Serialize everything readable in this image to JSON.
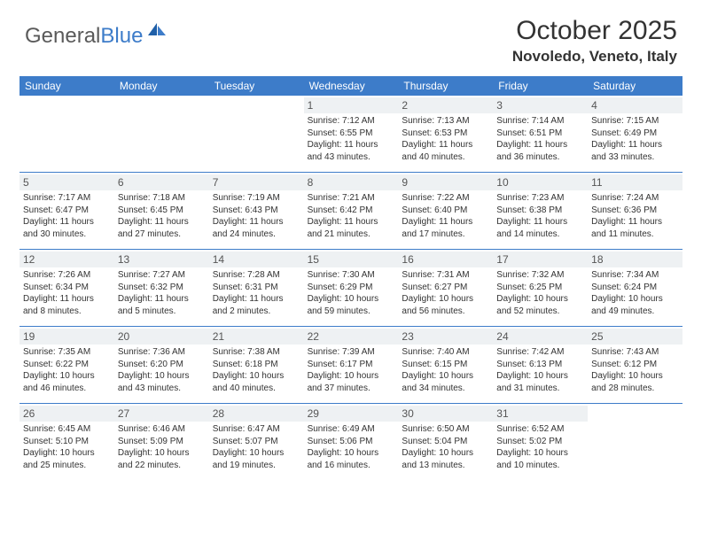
{
  "brand": {
    "part1": "General",
    "part2": "Blue"
  },
  "title": "October 2025",
  "location": "Novoledo, Veneto, Italy",
  "colors": {
    "accent": "#3d7cc9",
    "dayHeaderBg": "#eef1f3",
    "text": "#333333",
    "background": "#ffffff"
  },
  "typography": {
    "title_fontsize": 30,
    "location_fontsize": 17,
    "dow_fontsize": 12,
    "daynum_fontsize": 12,
    "detail_fontsize": 10
  },
  "dow": [
    "Sunday",
    "Monday",
    "Tuesday",
    "Wednesday",
    "Thursday",
    "Friday",
    "Saturday"
  ],
  "weeks": [
    [
      {
        "n": "",
        "sr": "",
        "ss": "",
        "dl": ""
      },
      {
        "n": "",
        "sr": "",
        "ss": "",
        "dl": ""
      },
      {
        "n": "",
        "sr": "",
        "ss": "",
        "dl": ""
      },
      {
        "n": "1",
        "sr": "Sunrise: 7:12 AM",
        "ss": "Sunset: 6:55 PM",
        "dl": "Daylight: 11 hours and 43 minutes."
      },
      {
        "n": "2",
        "sr": "Sunrise: 7:13 AM",
        "ss": "Sunset: 6:53 PM",
        "dl": "Daylight: 11 hours and 40 minutes."
      },
      {
        "n": "3",
        "sr": "Sunrise: 7:14 AM",
        "ss": "Sunset: 6:51 PM",
        "dl": "Daylight: 11 hours and 36 minutes."
      },
      {
        "n": "4",
        "sr": "Sunrise: 7:15 AM",
        "ss": "Sunset: 6:49 PM",
        "dl": "Daylight: 11 hours and 33 minutes."
      }
    ],
    [
      {
        "n": "5",
        "sr": "Sunrise: 7:17 AM",
        "ss": "Sunset: 6:47 PM",
        "dl": "Daylight: 11 hours and 30 minutes."
      },
      {
        "n": "6",
        "sr": "Sunrise: 7:18 AM",
        "ss": "Sunset: 6:45 PM",
        "dl": "Daylight: 11 hours and 27 minutes."
      },
      {
        "n": "7",
        "sr": "Sunrise: 7:19 AM",
        "ss": "Sunset: 6:43 PM",
        "dl": "Daylight: 11 hours and 24 minutes."
      },
      {
        "n": "8",
        "sr": "Sunrise: 7:21 AM",
        "ss": "Sunset: 6:42 PM",
        "dl": "Daylight: 11 hours and 21 minutes."
      },
      {
        "n": "9",
        "sr": "Sunrise: 7:22 AM",
        "ss": "Sunset: 6:40 PM",
        "dl": "Daylight: 11 hours and 17 minutes."
      },
      {
        "n": "10",
        "sr": "Sunrise: 7:23 AM",
        "ss": "Sunset: 6:38 PM",
        "dl": "Daylight: 11 hours and 14 minutes."
      },
      {
        "n": "11",
        "sr": "Sunrise: 7:24 AM",
        "ss": "Sunset: 6:36 PM",
        "dl": "Daylight: 11 hours and 11 minutes."
      }
    ],
    [
      {
        "n": "12",
        "sr": "Sunrise: 7:26 AM",
        "ss": "Sunset: 6:34 PM",
        "dl": "Daylight: 11 hours and 8 minutes."
      },
      {
        "n": "13",
        "sr": "Sunrise: 7:27 AM",
        "ss": "Sunset: 6:32 PM",
        "dl": "Daylight: 11 hours and 5 minutes."
      },
      {
        "n": "14",
        "sr": "Sunrise: 7:28 AM",
        "ss": "Sunset: 6:31 PM",
        "dl": "Daylight: 11 hours and 2 minutes."
      },
      {
        "n": "15",
        "sr": "Sunrise: 7:30 AM",
        "ss": "Sunset: 6:29 PM",
        "dl": "Daylight: 10 hours and 59 minutes."
      },
      {
        "n": "16",
        "sr": "Sunrise: 7:31 AM",
        "ss": "Sunset: 6:27 PM",
        "dl": "Daylight: 10 hours and 56 minutes."
      },
      {
        "n": "17",
        "sr": "Sunrise: 7:32 AM",
        "ss": "Sunset: 6:25 PM",
        "dl": "Daylight: 10 hours and 52 minutes."
      },
      {
        "n": "18",
        "sr": "Sunrise: 7:34 AM",
        "ss": "Sunset: 6:24 PM",
        "dl": "Daylight: 10 hours and 49 minutes."
      }
    ],
    [
      {
        "n": "19",
        "sr": "Sunrise: 7:35 AM",
        "ss": "Sunset: 6:22 PM",
        "dl": "Daylight: 10 hours and 46 minutes."
      },
      {
        "n": "20",
        "sr": "Sunrise: 7:36 AM",
        "ss": "Sunset: 6:20 PM",
        "dl": "Daylight: 10 hours and 43 minutes."
      },
      {
        "n": "21",
        "sr": "Sunrise: 7:38 AM",
        "ss": "Sunset: 6:18 PM",
        "dl": "Daylight: 10 hours and 40 minutes."
      },
      {
        "n": "22",
        "sr": "Sunrise: 7:39 AM",
        "ss": "Sunset: 6:17 PM",
        "dl": "Daylight: 10 hours and 37 minutes."
      },
      {
        "n": "23",
        "sr": "Sunrise: 7:40 AM",
        "ss": "Sunset: 6:15 PM",
        "dl": "Daylight: 10 hours and 34 minutes."
      },
      {
        "n": "24",
        "sr": "Sunrise: 7:42 AM",
        "ss": "Sunset: 6:13 PM",
        "dl": "Daylight: 10 hours and 31 minutes."
      },
      {
        "n": "25",
        "sr": "Sunrise: 7:43 AM",
        "ss": "Sunset: 6:12 PM",
        "dl": "Daylight: 10 hours and 28 minutes."
      }
    ],
    [
      {
        "n": "26",
        "sr": "Sunrise: 6:45 AM",
        "ss": "Sunset: 5:10 PM",
        "dl": "Daylight: 10 hours and 25 minutes."
      },
      {
        "n": "27",
        "sr": "Sunrise: 6:46 AM",
        "ss": "Sunset: 5:09 PM",
        "dl": "Daylight: 10 hours and 22 minutes."
      },
      {
        "n": "28",
        "sr": "Sunrise: 6:47 AM",
        "ss": "Sunset: 5:07 PM",
        "dl": "Daylight: 10 hours and 19 minutes."
      },
      {
        "n": "29",
        "sr": "Sunrise: 6:49 AM",
        "ss": "Sunset: 5:06 PM",
        "dl": "Daylight: 10 hours and 16 minutes."
      },
      {
        "n": "30",
        "sr": "Sunrise: 6:50 AM",
        "ss": "Sunset: 5:04 PM",
        "dl": "Daylight: 10 hours and 13 minutes."
      },
      {
        "n": "31",
        "sr": "Sunrise: 6:52 AM",
        "ss": "Sunset: 5:02 PM",
        "dl": "Daylight: 10 hours and 10 minutes."
      },
      {
        "n": "",
        "sr": "",
        "ss": "",
        "dl": ""
      }
    ]
  ]
}
